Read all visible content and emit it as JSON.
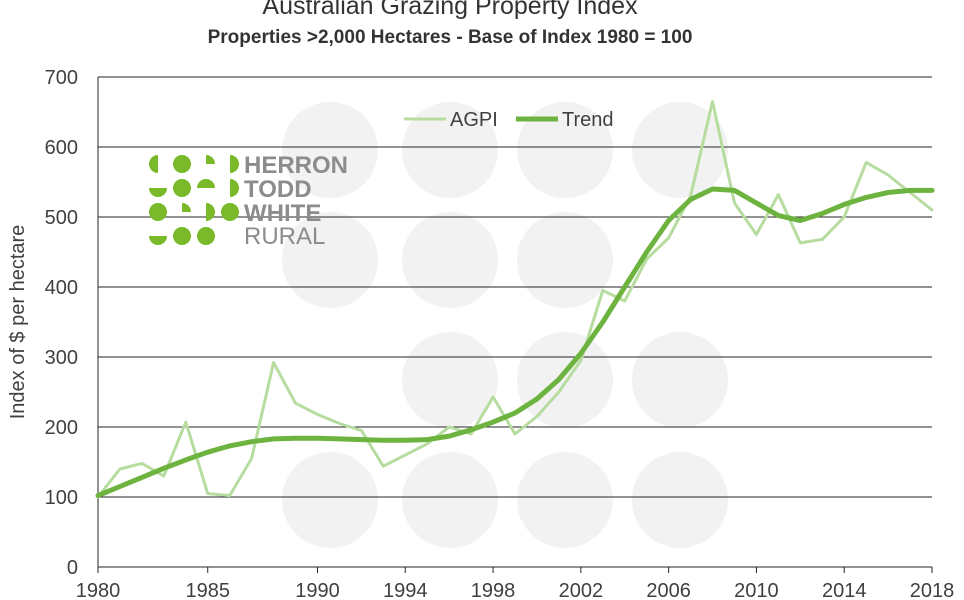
{
  "colors": {
    "agpi": "#b7dca0",
    "trend": "#6db33f",
    "grid": "#262626",
    "logo_green": "#7ab928",
    "logo_grey": "#8c8c8c",
    "watermark": "#f2f2f2"
  },
  "logo": {
    "icon": "herron-todd-white-dots-icon",
    "lines": [
      "HERRON",
      "TODD",
      "WHITE",
      "RURAL"
    ]
  },
  "chart_data": {
    "type": "line",
    "title": "Australian Grazing Property Index",
    "subtitle": "Properties >2,000 Hectares - Base of Index 1980 = 100",
    "ylabel": "Index of $ per hectare",
    "xlabel": "",
    "ylim": [
      0,
      700
    ],
    "yticks": [
      0,
      100,
      200,
      300,
      400,
      500,
      600,
      700
    ],
    "xlim": [
      1980,
      2018
    ],
    "xticks": [
      1980,
      1985,
      1990,
      1994,
      1998,
      2002,
      2006,
      2010,
      2014,
      2018
    ],
    "grid": true,
    "legend_position": "top-center",
    "series": [
      {
        "name": "AGPI",
        "x": [
          1980,
          1981,
          1982,
          1983,
          1984,
          1985,
          1986,
          1987,
          1988,
          1989,
          1990,
          1991,
          1992,
          1993,
          1994,
          1995,
          1996,
          1997,
          1998,
          1999,
          2000,
          2001,
          2002,
          2003,
          2004,
          2005,
          2006,
          2007,
          2008,
          2009,
          2010,
          2011,
          2012,
          2013,
          2014,
          2015,
          2016,
          2017,
          2018
        ],
        "values": [
          100,
          140,
          148,
          130,
          207,
          105,
          102,
          155,
          292,
          234,
          218,
          205,
          195,
          144,
          160,
          176,
          200,
          190,
          243,
          190,
          215,
          250,
          295,
          395,
          380,
          440,
          470,
          530,
          665,
          520,
          475,
          532,
          463,
          468,
          500,
          578,
          560,
          535,
          510
        ]
      },
      {
        "name": "Trend",
        "x": [
          1980,
          1981,
          1982,
          1983,
          1984,
          1985,
          1986,
          1987,
          1988,
          1989,
          1990,
          1991,
          1992,
          1993,
          1994,
          1995,
          1996,
          1997,
          1998,
          1999,
          2000,
          2001,
          2002,
          2003,
          2004,
          2005,
          2006,
          2007,
          2008,
          2009,
          2010,
          2011,
          2012,
          2013,
          2014,
          2015,
          2016,
          2017,
          2018
        ],
        "values": [
          102,
          115,
          128,
          141,
          153,
          164,
          173,
          179,
          183,
          184,
          184,
          183,
          182,
          181,
          181,
          182,
          187,
          196,
          207,
          220,
          240,
          268,
          305,
          350,
          400,
          450,
          495,
          525,
          540,
          538,
          520,
          502,
          495,
          505,
          518,
          528,
          535,
          538,
          538
        ]
      }
    ]
  }
}
